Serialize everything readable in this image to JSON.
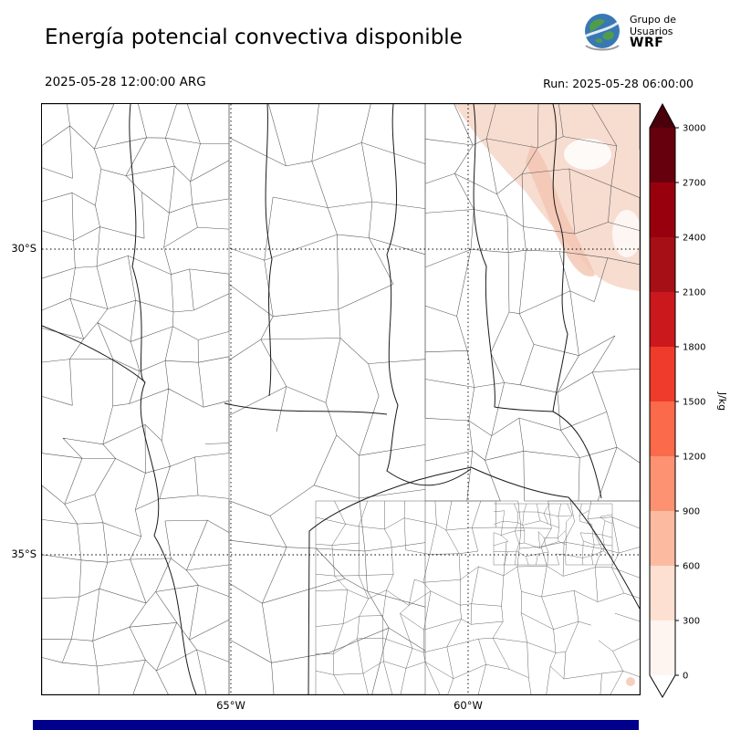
{
  "header": {
    "title": "Energía potencial convectiva disponible",
    "valid_time": "2025-05-28 12:00:00 ARG",
    "run_label": "Run: 2025-05-28 06:00:00",
    "logo": {
      "line1": "Grupo de",
      "line2": "Usuarios",
      "line3": "WRF"
    }
  },
  "map": {
    "lat_labels": [
      "30°S",
      "35°S"
    ],
    "lon_labels": [
      "65°W",
      "60°W"
    ]
  },
  "colorbar": {
    "unit": "J/kg",
    "tick_labels": [
      "3000",
      "2700",
      "2400",
      "2100",
      "1800",
      "1500",
      "1200",
      "900",
      "600",
      "300",
      "0"
    ],
    "segment_colors_top_to_bottom": [
      "#67000d",
      "#99000d",
      "#a50f15",
      "#cb181d",
      "#ef3b2c",
      "#fb6a4a",
      "#fc9272",
      "#fcbba1",
      "#fee0d2",
      "#fff5f0"
    ],
    "over_arrow_color": "#4a000a",
    "under_arrow_color": "#ffffff"
  },
  "shading": {
    "light_fill": "#f7dcd0",
    "mid_fill": "#f2c4b0"
  },
  "footer": {
    "bar_color": "#00008B"
  },
  "chart_data": {
    "type": "heatmap",
    "title": "Energía potencial convectiva disponible",
    "colorbar_unit": "J/kg",
    "levels": [
      0,
      300,
      600,
      900,
      1200,
      1500,
      1800,
      2100,
      2400,
      2700,
      3000
    ],
    "palette_low_to_high": [
      "#fff5f0",
      "#fee0d2",
      "#fcbba1",
      "#fc9272",
      "#fb6a4a",
      "#ef3b2c",
      "#cb181d",
      "#a50f15",
      "#99000d",
      "#67000d"
    ],
    "lat_gridlines": [
      "30°S",
      "35°S"
    ],
    "lon_gridlines": [
      "65°W",
      "60°W"
    ],
    "note": "CAPE near 0 over most of the domain; weak shading (~0–600 J/kg) only in the northeast corner of the map"
  }
}
